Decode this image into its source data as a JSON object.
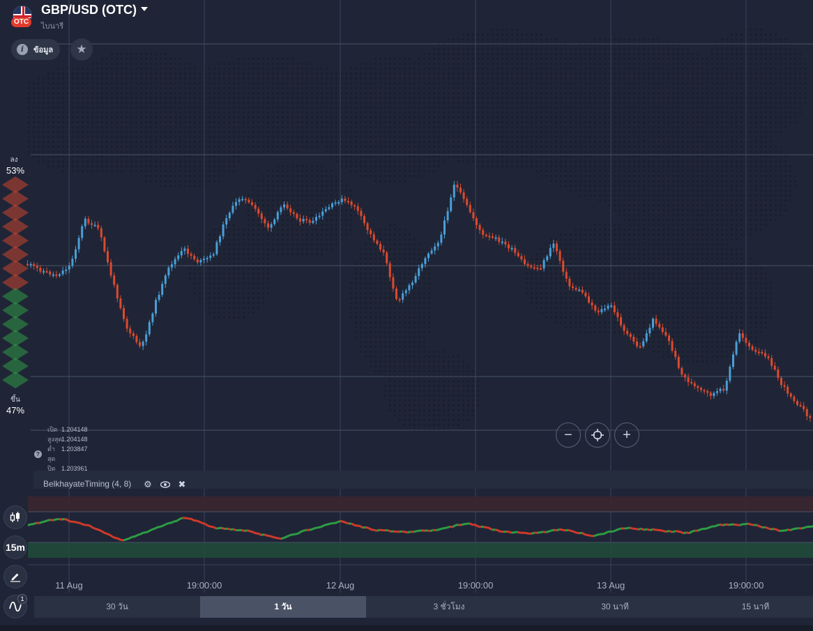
{
  "asset": {
    "title": "GBP/USD (OTC)",
    "subtitle": "ไบนารี",
    "badge": "OTC",
    "flag_icon": "uk-us-flag-icon"
  },
  "actions": {
    "info_label": "ข้อมูล",
    "favorite_icon": "star-icon"
  },
  "sentiment": {
    "down_label": "ลง",
    "down_pct": "53%",
    "up_label": "ขึ้น",
    "up_pct": "47%",
    "down_color": "#c8452f",
    "up_color": "#2f9a45"
  },
  "ohlc": {
    "open_label": "เปิด",
    "open": "1.204148",
    "high_label": "สูงสุด",
    "high": "1.204148",
    "low_label": "ต่ำสุด",
    "low": "1.203847",
    "close_label": "ปิด",
    "close": "1.203961"
  },
  "indicator": {
    "name": "BelkhayateTiming (4, 8)",
    "settings_icon": "gear-icon",
    "visibility_icon": "eye-icon",
    "remove_icon": "close-icon"
  },
  "toolbar": {
    "chart_type_icon": "candles-icon",
    "timeframe": "15m",
    "draw_icon": "pencil-icon",
    "indicators_icon": "wave-icon",
    "indicators_count": "1"
  },
  "zoom": {
    "out": "−",
    "center_icon": "crosshair-icon",
    "in": "+"
  },
  "x_axis_labels": [
    "11 Aug",
    "19:00:00",
    "12 Aug",
    "19:00:00",
    "13 Aug",
    "19:00:00"
  ],
  "periods": [
    {
      "label": "30 วัน",
      "active": false
    },
    {
      "label": "1 วัน",
      "active": true
    },
    {
      "label": "3 ชั่วโมง",
      "active": false
    },
    {
      "label": "30 นาที",
      "active": false
    },
    {
      "label": "15 นาที",
      "active": false
    }
  ],
  "colors": {
    "background": "#1f2536",
    "bull": "#4a9fd8",
    "bear": "#dc4a2e",
    "osc_up": "#2e9e44",
    "osc_down": "#d23a2a"
  },
  "chart_data": {
    "type": "candlestick",
    "series_name": "GBP/USD (OTC)",
    "price_trace": [
      1.20415,
      1.20395,
      1.2038,
      1.2041,
      1.2055,
      1.2052,
      1.2036,
      1.2022,
      1.2016,
      1.203,
      1.2041,
      1.2046,
      1.2042,
      1.2044,
      1.2056,
      1.2062,
      1.2058,
      1.2052,
      1.206,
      1.2055,
      1.2054,
      1.2058,
      1.2061,
      1.2059,
      1.2051,
      1.2045,
      1.203,
      1.2036,
      1.2044,
      1.2049,
      1.2066,
      1.2058,
      1.205,
      1.2049,
      1.2046,
      1.2041,
      1.204,
      1.2048,
      1.2035,
      1.2033,
      1.2027,
      1.2029,
      1.2021,
      1.2016,
      1.2025,
      1.2019,
      1.2008,
      1.2004,
      1.2002,
      1.2004,
      1.2021,
      1.2015,
      1.2014,
      1.2005,
      1.2,
      1.1995
    ],
    "oscillator_trace": [
      0.2,
      0.9,
      0.1,
      -1.4,
      -0.2,
      1.0,
      -0.1,
      -0.4,
      -1.2,
      -0.2,
      0.6,
      -0.3,
      -0.5,
      -0.3,
      0.4,
      -0.4,
      -0.7,
      -0.2,
      -0.9,
      -0.1,
      -0.3,
      -0.6,
      0.2,
      0.3,
      -0.4,
      0.1
    ],
    "x_ticks": [
      "11 Aug",
      "19:00:00",
      "12 Aug",
      "19:00:00",
      "13 Aug",
      "19:00:00"
    ]
  }
}
